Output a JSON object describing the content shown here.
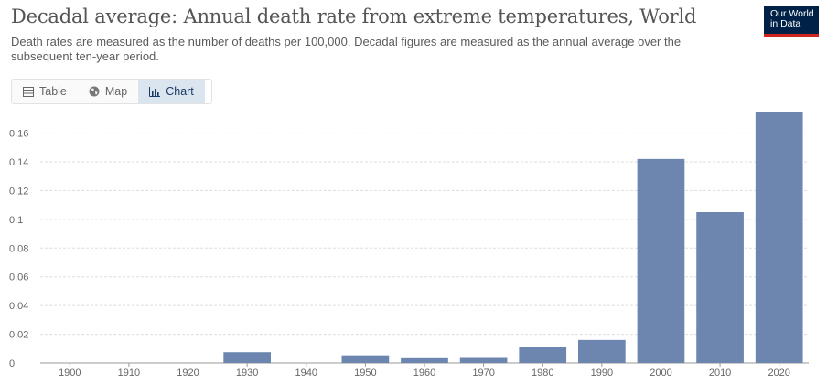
{
  "header": {
    "title": "Decadal average: Annual death rate from extreme temperatures, World",
    "subtitle": "Death rates are measured as the number of deaths per 100,000. Decadal figures are measured as the annual average over the subsequent ten-year period.",
    "logo_line1": "Our World",
    "logo_line2": "in Data"
  },
  "tabs": [
    {
      "label": "Table",
      "icon": "table-icon",
      "active": false
    },
    {
      "label": "Map",
      "icon": "globe-icon",
      "active": false
    },
    {
      "label": "Chart",
      "icon": "chart-icon",
      "active": true
    }
  ],
  "colors": {
    "bar": "#6d86b0",
    "grid": "#dddddd",
    "logo_bg": "#002147",
    "logo_accent": "#ce261e"
  },
  "chart_data": {
    "type": "bar",
    "categories": [
      "1900",
      "1910",
      "1920",
      "1930",
      "1940",
      "1950",
      "1960",
      "1970",
      "1980",
      "1990",
      "2000",
      "2010",
      "2020"
    ],
    "values": [
      0,
      0,
      0,
      0.0075,
      0,
      0.0053,
      0.0033,
      0.0035,
      0.011,
      0.016,
      0.142,
      0.105,
      0.175
    ],
    "yticks": [
      0,
      0.02,
      0.04,
      0.06,
      0.08,
      0.1,
      0.12,
      0.14,
      0.16
    ],
    "ytick_labels": [
      "0",
      "0.02",
      "0.04",
      "0.06",
      "0.08",
      "0.1",
      "0.12",
      "0.14",
      "0.16"
    ],
    "ylim": [
      0,
      0.175
    ],
    "grid": true
  }
}
